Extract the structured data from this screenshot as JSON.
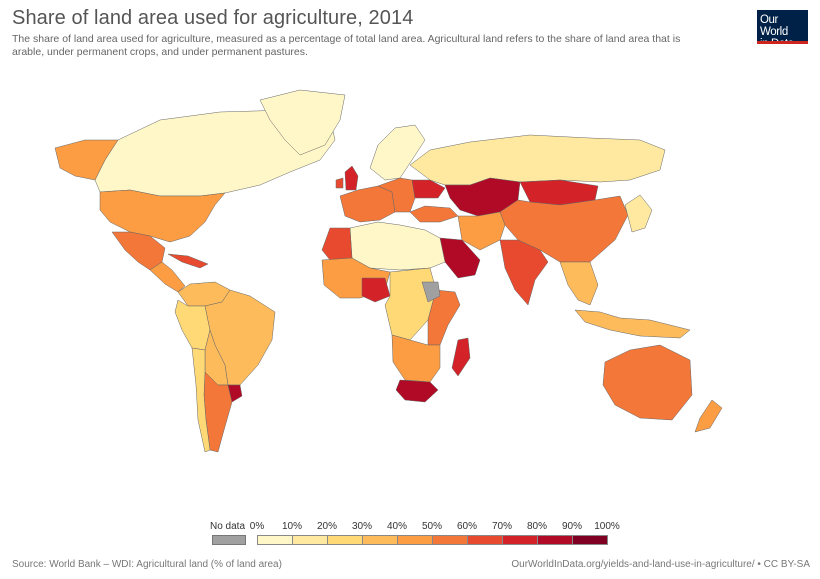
{
  "header": {
    "title": "Share of land area used for agriculture, 2014",
    "subtitle": "The share of land area used for agriculture, measured as a percentage of total land area. Agricultural land refers to the share of land area that is arable, under permanent crops, and under permanent pastures."
  },
  "logo": {
    "line1": "Our World",
    "line2": "in Data"
  },
  "legend": {
    "no_data_label": "No data",
    "no_data_color": "#a0a0a0",
    "ticks": [
      "0%",
      "10%",
      "20%",
      "30%",
      "40%",
      "50%",
      "60%",
      "70%",
      "80%",
      "90%",
      "100%"
    ],
    "colors": [
      "#fff7c8",
      "#ffe9a0",
      "#fed976",
      "#fdbb5c",
      "#fd9d43",
      "#f4773a",
      "#e84a30",
      "#d32328",
      "#b10a26",
      "#7f0022"
    ]
  },
  "regions": [
    {
      "name": "Canada & Arctic",
      "value": 7
    },
    {
      "name": "Alaska",
      "value": 45
    },
    {
      "name": "United States",
      "value": 44
    },
    {
      "name": "Greenland",
      "value": 1
    },
    {
      "name": "Mexico",
      "value": 55
    },
    {
      "name": "Central America",
      "value": 40
    },
    {
      "name": "Cuba",
      "value": 60
    },
    {
      "name": "Colombia & Venezuela",
      "value": 32
    },
    {
      "name": "Peru & Ecuador",
      "value": 20
    },
    {
      "name": "Brazil",
      "value": 33
    },
    {
      "name": "Bolivia & Paraguay",
      "value": 38
    },
    {
      "name": "Argentina",
      "value": 54
    },
    {
      "name": "Chile",
      "value": 21
    },
    {
      "name": "Uruguay",
      "value": 83
    },
    {
      "name": "Russia",
      "value": 13
    },
    {
      "name": "Scandinavia",
      "value": 8
    },
    {
      "name": "United Kingdom",
      "value": 71
    },
    {
      "name": "Ireland",
      "value": 65
    },
    {
      "name": "Western Europe",
      "value": 52
    },
    {
      "name": "Eastern Europe",
      "value": 58
    },
    {
      "name": "Ukraine",
      "value": 71
    },
    {
      "name": "Turkey",
      "value": 50
    },
    {
      "name": "Kazakhstan",
      "value": 80
    },
    {
      "name": "Mongolia",
      "value": 73
    },
    {
      "name": "China",
      "value": 55
    },
    {
      "name": "Iran & Afghanistan",
      "value": 40
    },
    {
      "name": "Saudi Arabia",
      "value": 81
    },
    {
      "name": "India",
      "value": 60
    },
    {
      "name": "Southeast Asia",
      "value": 35
    },
    {
      "name": "Indonesia",
      "value": 31
    },
    {
      "name": "Japan & Korea",
      "value": 13
    },
    {
      "name": "Australia",
      "value": 53
    },
    {
      "name": "New Zealand",
      "value": 43
    },
    {
      "name": "North Africa",
      "value": 4
    },
    {
      "name": "Morocco",
      "value": 68
    },
    {
      "name": "West Africa",
      "value": 45
    },
    {
      "name": "Nigeria",
      "value": 78
    },
    {
      "name": "Central Africa",
      "value": 22
    },
    {
      "name": "East Africa",
      "value": 55
    },
    {
      "name": "Southern Africa",
      "value": 47
    },
    {
      "name": "South Africa",
      "value": 80
    },
    {
      "name": "Madagascar",
      "value": 71
    },
    {
      "name": "Ethiopia",
      "value": null
    }
  ],
  "footer": {
    "source": "Source: World Bank – WDI: Agricultural land (% of land area)",
    "url": "OurWorldInData.org/yields-and-land-use-in-agriculture/ • CC BY-SA"
  }
}
